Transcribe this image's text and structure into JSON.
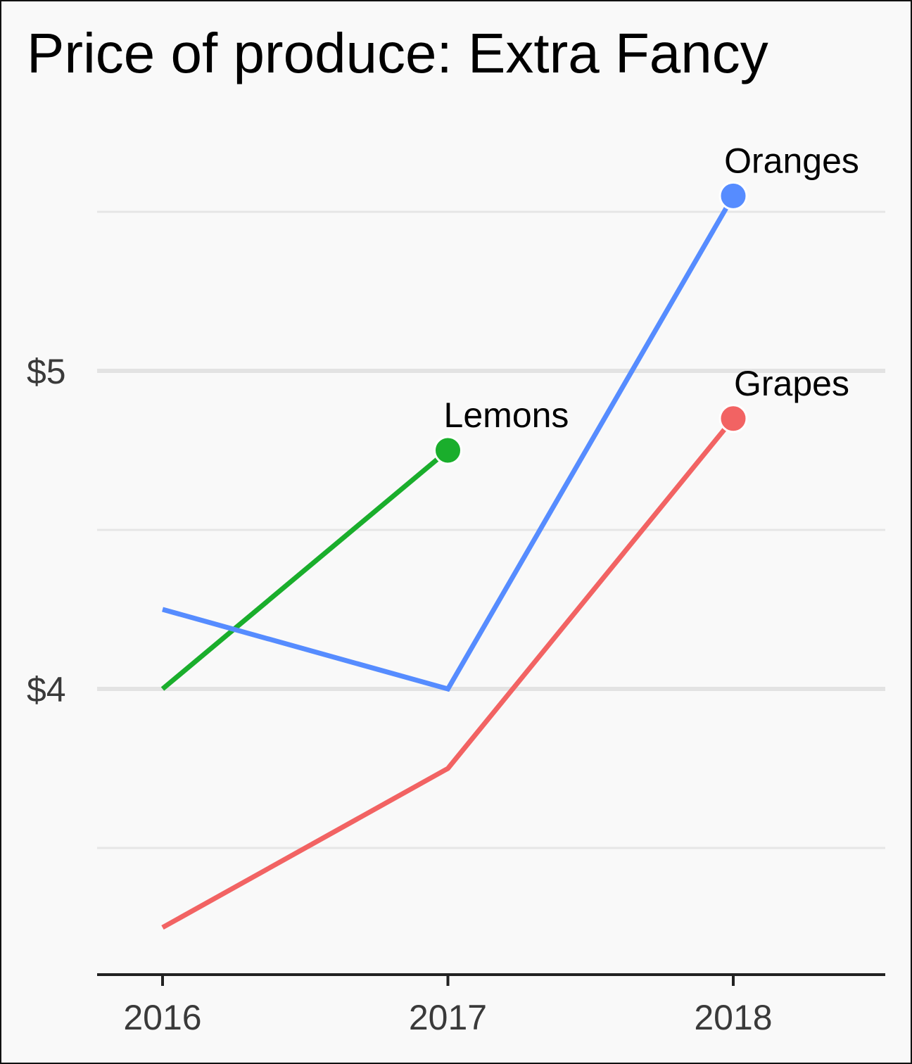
{
  "chart_data": {
    "type": "line",
    "title": "Price of produce: Extra Fancy",
    "xlabel": "",
    "ylabel": "",
    "x": [
      2016,
      2017,
      2018
    ],
    "xtick_labels": [
      "2016",
      "2017",
      "2018"
    ],
    "ytick_values": [
      4,
      5
    ],
    "ytick_labels": [
      "$4",
      "$5"
    ],
    "minor_gridlines": [
      3.5,
      4.5,
      5.5
    ],
    "ylim": [
      3.1,
      5.9
    ],
    "grid": "horizontal",
    "legend": "none (direct end labels)",
    "series": [
      {
        "name": "Lemons",
        "color": "#1aae2c",
        "values": [
          4.0,
          4.75,
          null
        ]
      },
      {
        "name": "Oranges",
        "color": "#568cff",
        "values": [
          4.25,
          4.0,
          5.55
        ]
      },
      {
        "name": "Grapes",
        "color": "#f26363",
        "values": [
          3.25,
          3.75,
          4.85
        ]
      }
    ]
  }
}
